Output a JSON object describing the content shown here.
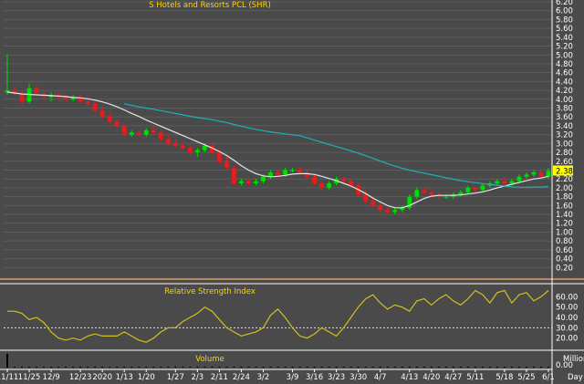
{
  "chart_data": [
    {
      "type": "candlestick",
      "title": "S Hotels and Resorts PCL (SHR)",
      "ylim": [
        0.0,
        6.2
      ],
      "y_ticks": [
        0.2,
        0.4,
        0.6,
        0.8,
        1.0,
        1.2,
        1.4,
        1.6,
        1.8,
        2.0,
        2.2,
        2.4,
        2.6,
        2.8,
        3.0,
        3.2,
        3.4,
        3.6,
        3.8,
        4.0,
        4.2,
        4.4,
        4.6,
        4.8,
        5.0,
        5.2,
        5.4,
        5.6,
        5.8,
        6.0,
        6.2
      ],
      "last_price_label": "2.38",
      "grid": true,
      "series": [
        {
          "kind": "candles",
          "color_up": "#00dd00",
          "color_down": "#e02020",
          "values": [
            {
              "o": 4.15,
              "h": 5.0,
              "l": 4.1,
              "c": 4.2
            },
            {
              "o": 4.2,
              "h": 4.3,
              "l": 4.1,
              "c": 4.15
            },
            {
              "o": 4.1,
              "h": 4.2,
              "l": 3.85,
              "c": 3.95
            },
            {
              "o": 3.95,
              "h": 4.35,
              "l": 3.9,
              "c": 4.25
            },
            {
              "o": 4.25,
              "h": 4.3,
              "l": 4.1,
              "c": 4.15
            },
            {
              "o": 4.1,
              "h": 4.2,
              "l": 4.0,
              "c": 4.05
            },
            {
              "o": 4.05,
              "h": 4.15,
              "l": 3.95,
              "c": 4.1
            },
            {
              "o": 4.1,
              "h": 4.15,
              "l": 4.0,
              "c": 4.05
            },
            {
              "o": 4.05,
              "h": 4.1,
              "l": 3.95,
              "c": 4.0
            },
            {
              "o": 4.0,
              "h": 4.1,
              "l": 3.95,
              "c": 4.05
            },
            {
              "o": 4.05,
              "h": 4.1,
              "l": 3.9,
              "c": 3.95
            },
            {
              "o": 3.95,
              "h": 4.05,
              "l": 3.85,
              "c": 3.9
            },
            {
              "o": 3.9,
              "h": 3.95,
              "l": 3.7,
              "c": 3.75
            },
            {
              "o": 3.75,
              "h": 3.85,
              "l": 3.55,
              "c": 3.6
            },
            {
              "o": 3.6,
              "h": 3.7,
              "l": 3.45,
              "c": 3.5
            },
            {
              "o": 3.5,
              "h": 3.55,
              "l": 3.35,
              "c": 3.4
            },
            {
              "o": 3.4,
              "h": 3.45,
              "l": 3.15,
              "c": 3.2
            },
            {
              "o": 3.2,
              "h": 3.3,
              "l": 3.15,
              "c": 3.25
            },
            {
              "o": 3.25,
              "h": 3.3,
              "l": 3.15,
              "c": 3.2
            },
            {
              "o": 3.2,
              "h": 3.35,
              "l": 3.15,
              "c": 3.3
            },
            {
              "o": 3.3,
              "h": 3.4,
              "l": 3.2,
              "c": 3.25
            },
            {
              "o": 3.25,
              "h": 3.3,
              "l": 3.05,
              "c": 3.1
            },
            {
              "o": 3.1,
              "h": 3.2,
              "l": 2.95,
              "c": 3.0
            },
            {
              "o": 3.0,
              "h": 3.1,
              "l": 2.9,
              "c": 2.95
            },
            {
              "o": 2.95,
              "h": 3.05,
              "l": 2.85,
              "c": 2.9
            },
            {
              "o": 2.9,
              "h": 2.95,
              "l": 2.75,
              "c": 2.8
            },
            {
              "o": 2.8,
              "h": 2.9,
              "l": 2.7,
              "c": 2.85
            },
            {
              "o": 2.85,
              "h": 3.0,
              "l": 2.8,
              "c": 2.95
            },
            {
              "o": 2.95,
              "h": 3.0,
              "l": 2.75,
              "c": 2.8
            },
            {
              "o": 2.8,
              "h": 2.85,
              "l": 2.55,
              "c": 2.6
            },
            {
              "o": 2.6,
              "h": 2.7,
              "l": 2.4,
              "c": 2.45
            },
            {
              "o": 2.45,
              "h": 2.5,
              "l": 2.05,
              "c": 2.1
            },
            {
              "o": 2.1,
              "h": 2.2,
              "l": 2.05,
              "c": 2.15
            },
            {
              "o": 2.15,
              "h": 2.2,
              "l": 2.05,
              "c": 2.1
            },
            {
              "o": 2.1,
              "h": 2.2,
              "l": 2.05,
              "c": 2.15
            },
            {
              "o": 2.15,
              "h": 2.3,
              "l": 2.1,
              "c": 2.25
            },
            {
              "o": 2.25,
              "h": 2.4,
              "l": 2.2,
              "c": 2.35
            },
            {
              "o": 2.35,
              "h": 2.4,
              "l": 2.25,
              "c": 2.3
            },
            {
              "o": 2.3,
              "h": 2.45,
              "l": 2.25,
              "c": 2.4
            },
            {
              "o": 2.4,
              "h": 2.45,
              "l": 2.35,
              "c": 2.4
            },
            {
              "o": 2.4,
              "h": 2.45,
              "l": 2.3,
              "c": 2.35
            },
            {
              "o": 2.35,
              "h": 2.4,
              "l": 2.2,
              "c": 2.25
            },
            {
              "o": 2.25,
              "h": 2.3,
              "l": 2.05,
              "c": 2.1
            },
            {
              "o": 2.1,
              "h": 2.15,
              "l": 1.95,
              "c": 2.0
            },
            {
              "o": 2.0,
              "h": 2.15,
              "l": 1.95,
              "c": 2.1
            },
            {
              "o": 2.1,
              "h": 2.25,
              "l": 2.05,
              "c": 2.2
            },
            {
              "o": 2.2,
              "h": 2.25,
              "l": 2.1,
              "c": 2.15
            },
            {
              "o": 2.15,
              "h": 2.2,
              "l": 2.0,
              "c": 2.05
            },
            {
              "o": 2.05,
              "h": 2.1,
              "l": 1.8,
              "c": 1.85
            },
            {
              "o": 1.85,
              "h": 1.95,
              "l": 1.65,
              "c": 1.7
            },
            {
              "o": 1.7,
              "h": 1.8,
              "l": 1.55,
              "c": 1.6
            },
            {
              "o": 1.6,
              "h": 1.65,
              "l": 1.45,
              "c": 1.5
            },
            {
              "o": 1.5,
              "h": 1.55,
              "l": 1.4,
              "c": 1.45
            },
            {
              "o": 1.45,
              "h": 1.55,
              "l": 1.4,
              "c": 1.5
            },
            {
              "o": 1.5,
              "h": 1.6,
              "l": 1.45,
              "c": 1.55
            },
            {
              "o": 1.55,
              "h": 1.85,
              "l": 1.5,
              "c": 1.8
            },
            {
              "o": 1.8,
              "h": 2.0,
              "l": 1.75,
              "c": 1.95
            },
            {
              "o": 1.95,
              "h": 2.0,
              "l": 1.85,
              "c": 1.9
            },
            {
              "o": 1.9,
              "h": 1.95,
              "l": 1.8,
              "c": 1.85
            },
            {
              "o": 1.85,
              "h": 1.9,
              "l": 1.75,
              "c": 1.8
            },
            {
              "o": 1.8,
              "h": 1.85,
              "l": 1.75,
              "c": 1.8
            },
            {
              "o": 1.8,
              "h": 1.9,
              "l": 1.75,
              "c": 1.85
            },
            {
              "o": 1.85,
              "h": 1.95,
              "l": 1.8,
              "c": 1.9
            },
            {
              "o": 1.9,
              "h": 2.05,
              "l": 1.85,
              "c": 2.0
            },
            {
              "o": 2.0,
              "h": 2.05,
              "l": 1.9,
              "c": 1.95
            },
            {
              "o": 1.95,
              "h": 2.1,
              "l": 1.9,
              "c": 2.05
            },
            {
              "o": 2.05,
              "h": 2.15,
              "l": 2.0,
              "c": 2.1
            },
            {
              "o": 2.1,
              "h": 2.2,
              "l": 2.05,
              "c": 2.15
            },
            {
              "o": 2.15,
              "h": 2.25,
              "l": 2.05,
              "c": 2.1
            },
            {
              "o": 2.1,
              "h": 2.2,
              "l": 2.05,
              "c": 2.15
            },
            {
              "o": 2.15,
              "h": 2.3,
              "l": 2.1,
              "c": 2.25
            },
            {
              "o": 2.25,
              "h": 2.35,
              "l": 2.2,
              "c": 2.3
            },
            {
              "o": 2.3,
              "h": 2.4,
              "l": 2.25,
              "c": 2.35
            },
            {
              "o": 2.35,
              "h": 2.4,
              "l": 2.2,
              "c": 2.25
            },
            {
              "o": 2.25,
              "h": 2.45,
              "l": 2.2,
              "c": 2.38
            }
          ]
        },
        {
          "kind": "line",
          "name": "",
          "color": "#e6e6e6",
          "values": [
            4.16,
            4.14,
            4.12,
            4.11,
            4.1,
            4.09,
            4.08,
            4.07,
            4.06,
            4.04,
            4.03,
            4.01,
            3.98,
            3.94,
            3.89,
            3.83,
            3.76,
            3.68,
            3.61,
            3.53,
            3.46,
            3.39,
            3.32,
            3.25,
            3.18,
            3.11,
            3.04,
            2.97,
            2.9,
            2.82,
            2.73,
            2.62,
            2.5,
            2.4,
            2.32,
            2.27,
            2.25,
            2.26,
            2.28,
            2.31,
            2.32,
            2.32,
            2.3,
            2.26,
            2.21,
            2.16,
            2.1,
            2.04,
            1.96,
            1.87,
            1.77,
            1.68,
            1.6,
            1.55,
            1.55,
            1.6,
            1.68,
            1.76,
            1.81,
            1.83,
            1.83,
            1.83,
            1.84,
            1.86,
            1.88,
            1.91,
            1.95,
            2.0,
            2.04,
            2.08,
            2.12,
            2.16,
            2.2,
            2.22,
            2.26
          ]
        },
        {
          "kind": "line",
          "name": "",
          "color": "#1fb0b8",
          "values": [
            null,
            null,
            null,
            null,
            null,
            null,
            null,
            null,
            null,
            null,
            null,
            null,
            null,
            null,
            null,
            null,
            null,
            null,
            null,
            null,
            null,
            null,
            null,
            null,
            null,
            null,
            null,
            null,
            null,
            null,
            null,
            null,
            null,
            null,
            null,
            null,
            null,
            null,
            null,
            null,
            null,
            null,
            null,
            null,
            null,
            null,
            null,
            null,
            null,
            null,
            null,
            null,
            null,
            null,
            null,
            null,
            null,
            null,
            null,
            null,
            null,
            null,
            null,
            null,
            null,
            null,
            null,
            null,
            null,
            null,
            null,
            null,
            null,
            null,
            null
          ]
        }
      ]
    },
    {
      "type": "line",
      "title": "Relative Strength Index",
      "ylim": [
        10,
        70
      ],
      "y_ticks": [
        20.0,
        30.0,
        40.0,
        50.0,
        60.0
      ],
      "reference_line": 30,
      "series": [
        {
          "name": "",
          "color": "#d2c020",
          "values": [
            46,
            46,
            44,
            38,
            40,
            35,
            26,
            20,
            18,
            20,
            18,
            22,
            24,
            22,
            22,
            22,
            26,
            22,
            18,
            16,
            20,
            26,
            30,
            30,
            36,
            40,
            44,
            50,
            46,
            38,
            30,
            26,
            22,
            24,
            26,
            30,
            42,
            48,
            40,
            30,
            22,
            20,
            24,
            30,
            26,
            22,
            30,
            40,
            50,
            58,
            62,
            54,
            48,
            52,
            50,
            46,
            56,
            58,
            52,
            58,
            62,
            56,
            52,
            58,
            66,
            62,
            54,
            64,
            66,
            54,
            62,
            64,
            56,
            60,
            66
          ]
        }
      ]
    },
    {
      "type": "bar",
      "title": "Volume",
      "ylim": [
        0,
        1
      ],
      "y_ticks": [
        0.0
      ],
      "units_label": "Millions",
      "x_labels": [
        "11/11",
        "11/25",
        "12/9",
        "12/23",
        "2020",
        "1/13",
        "1/20",
        "1/27",
        "2/3",
        "2/11",
        "2/24",
        "3/2",
        "3/9",
        "3/16",
        "3/23",
        "3/30",
        "4/7",
        "4/13",
        "4/20",
        "4/27",
        "5/11",
        "5/18",
        "5/25",
        "6/1"
      ],
      "x_axis_unit": "Day",
      "series": [
        {
          "name": "",
          "color": "#000000",
          "values": [
            0.95,
            0.05,
            0.04,
            0.03,
            0.03,
            0.02,
            0.02,
            0.02,
            0.02,
            0.02,
            0.02,
            0.02,
            0.03,
            0.03,
            0.02,
            0.02,
            0.03,
            0.02,
            0.02,
            0.02,
            0.02,
            0.02,
            0.02,
            0.02,
            0.02,
            0.02,
            0.02,
            0.02,
            0.02,
            0.03,
            0.03,
            0.04,
            0.03,
            0.02,
            0.02,
            0.02,
            0.02,
            0.02,
            0.02,
            0.02,
            0.02,
            0.02,
            0.03,
            0.02,
            0.02,
            0.02,
            0.02,
            0.02,
            0.03,
            0.03,
            0.03,
            0.02,
            0.02,
            0.02,
            0.02,
            0.03,
            0.03,
            0.02,
            0.02,
            0.02,
            0.02,
            0.02,
            0.02,
            0.02,
            0.03,
            0.02,
            0.02,
            0.02,
            0.02,
            0.02,
            0.02,
            0.02,
            0.02,
            0.02,
            0.02
          ]
        }
      ]
    }
  ],
  "colors": {
    "background": "#4a4a4a",
    "panel": "#4a4a4a",
    "axis_text": "#ffffff",
    "title": "#ffd400",
    "separator": "#d9a060",
    "price_tag": "#ffff00"
  }
}
